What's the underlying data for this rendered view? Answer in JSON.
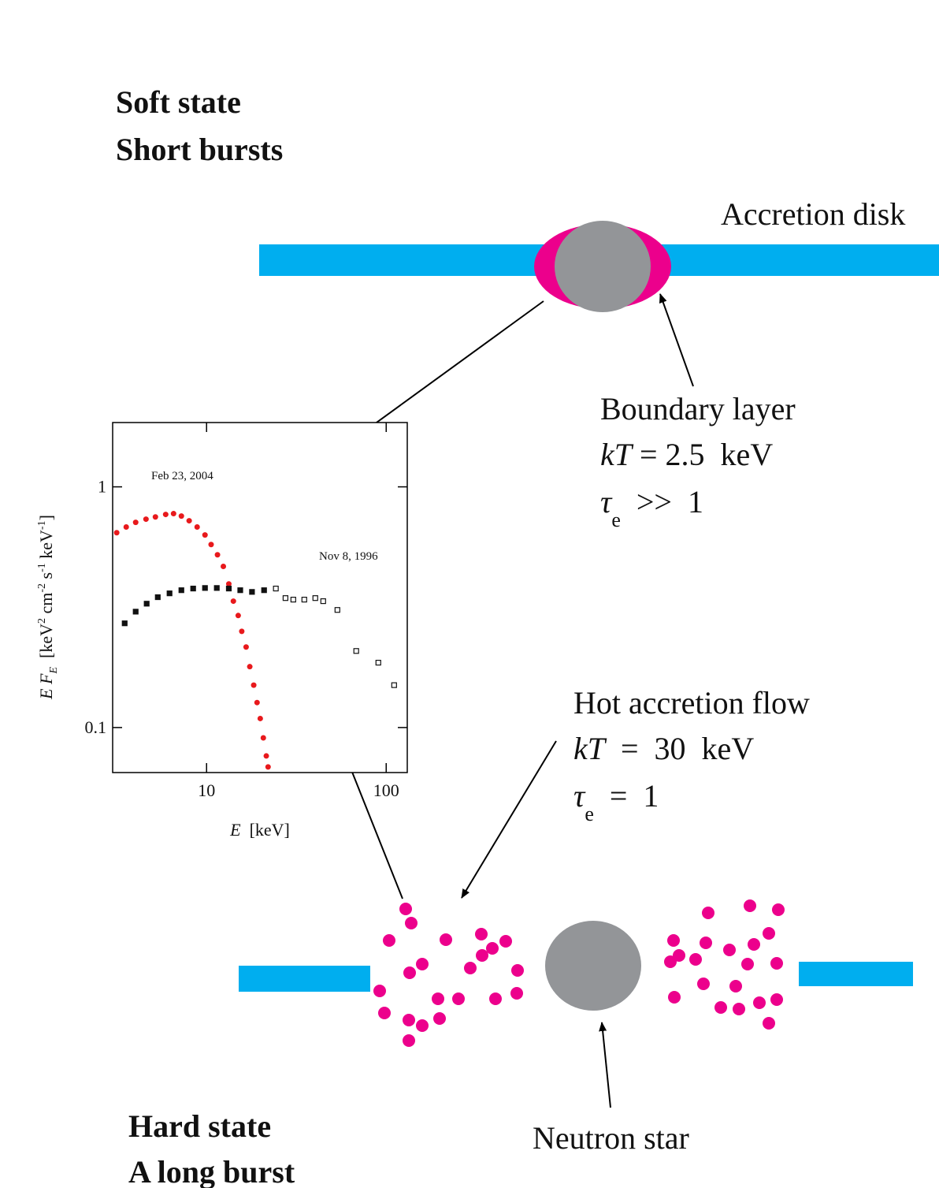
{
  "diagram": {
    "soft_state": "Soft state",
    "short_bursts": "Short bursts",
    "accretion_disk": "Accretion disk",
    "boundary_layer": "Boundary layer",
    "boundary_kt": [
      "kT",
      " = 2.5  keV"
    ],
    "boundary_tau": [
      "τ",
      "e",
      "  >>  1"
    ],
    "hot_flow": "Hot accretion flow",
    "hot_kt": [
      "kT",
      "  =  30  keV"
    ],
    "hot_tau": [
      "τ",
      "e",
      "  =  1"
    ],
    "neutron_star": "Neutron star",
    "hard_state": "Hard state",
    "long_burst": "A long burst"
  },
  "chart_data": {
    "type": "scatter",
    "xlabel": [
      "E",
      "  [keV]"
    ],
    "ylabel": [
      "E F",
      "E",
      "  [keV",
      "2",
      " cm",
      "-2",
      " s",
      "-1",
      " keV",
      "-1",
      "]"
    ],
    "xlog": true,
    "ylog": true,
    "xlim": [
      3,
      131
    ],
    "ylim": [
      0.065,
      1.85
    ],
    "xticks": [
      10,
      100
    ],
    "yticks": [
      0.1,
      1
    ],
    "series": [
      {
        "name": "Feb 23, 2004",
        "color": "#e8191c",
        "x": [
          3.16,
          3.57,
          4.03,
          4.6,
          5.19,
          5.92,
          6.55,
          7.24,
          8.0,
          8.86,
          9.8,
          10.6,
          11.5,
          12.4,
          13.3,
          14.1,
          15.0,
          15.7,
          16.6,
          17.4,
          18.3,
          19.1,
          19.9,
          20.7,
          21.5,
          22.0
        ],
        "values": [
          0.645,
          0.681,
          0.712,
          0.734,
          0.75,
          0.768,
          0.774,
          0.756,
          0.723,
          0.681,
          0.631,
          0.576,
          0.522,
          0.467,
          0.395,
          0.335,
          0.292,
          0.251,
          0.216,
          0.179,
          0.15,
          0.127,
          0.109,
          0.0906,
          0.0762,
          0.0686
        ]
      },
      {
        "name": "Nov 8, 1996",
        "color": "#111111",
        "x": [
          3.5,
          4.03,
          4.64,
          5.35,
          6.22,
          7.24,
          8.42,
          9.8,
          11.4,
          13.3,
          15.4,
          17.9,
          20.9,
          24.3,
          27.5,
          30.4,
          35.0,
          40.3,
          44.6,
          53.5,
          68.1,
          90.4,
          110.7
        ],
        "values": [
          0.271,
          0.303,
          0.327,
          0.348,
          0.361,
          0.372,
          0.378,
          0.38,
          0.38,
          0.378,
          0.372,
          0.366,
          0.372,
          0.378,
          0.345,
          0.34,
          0.34,
          0.345,
          0.335,
          0.308,
          0.208,
          0.186,
          0.15
        ]
      }
    ]
  }
}
